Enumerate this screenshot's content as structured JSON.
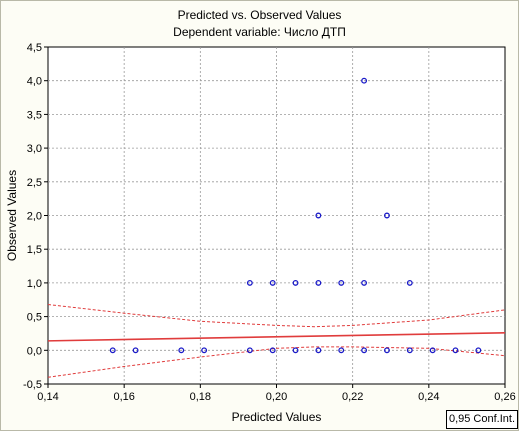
{
  "chart_data": {
    "type": "scatter",
    "title": "Predicted vs. Observed Values",
    "subtitle": "Dependent variable: Число ДТП",
    "xlabel": "Predicted Values",
    "ylabel": "Observed Values",
    "xlim": [
      0.14,
      0.26
    ],
    "ylim": [
      -0.5,
      4.5
    ],
    "x_ticks": [
      "0,14",
      "0,16",
      "0,18",
      "0,20",
      "0,22",
      "0,24",
      "0,26"
    ],
    "y_ticks": [
      "-0,5",
      "0,0",
      "0,5",
      "1,0",
      "1,5",
      "2,0",
      "2,5",
      "3,0",
      "3,5",
      "4,0",
      "4,5"
    ],
    "grid": true,
    "legend": "0,95 Conf.Int.",
    "points": [
      {
        "x": 0.157,
        "y": 0
      },
      {
        "x": 0.163,
        "y": 0
      },
      {
        "x": 0.175,
        "y": 0
      },
      {
        "x": 0.181,
        "y": 0
      },
      {
        "x": 0.193,
        "y": 0
      },
      {
        "x": 0.199,
        "y": 0
      },
      {
        "x": 0.205,
        "y": 0
      },
      {
        "x": 0.211,
        "y": 0
      },
      {
        "x": 0.217,
        "y": 0
      },
      {
        "x": 0.223,
        "y": 0
      },
      {
        "x": 0.229,
        "y": 0
      },
      {
        "x": 0.235,
        "y": 0
      },
      {
        "x": 0.241,
        "y": 0
      },
      {
        "x": 0.247,
        "y": 0
      },
      {
        "x": 0.253,
        "y": 0
      },
      {
        "x": 0.193,
        "y": 1
      },
      {
        "x": 0.199,
        "y": 1
      },
      {
        "x": 0.205,
        "y": 1
      },
      {
        "x": 0.211,
        "y": 1
      },
      {
        "x": 0.217,
        "y": 1
      },
      {
        "x": 0.223,
        "y": 1
      },
      {
        "x": 0.235,
        "y": 1
      },
      {
        "x": 0.211,
        "y": 2
      },
      {
        "x": 0.229,
        "y": 2
      },
      {
        "x": 0.223,
        "y": 4
      }
    ],
    "fit_line": {
      "x": [
        0.14,
        0.26
      ],
      "y": [
        0.14,
        0.26
      ]
    },
    "upper_ci": {
      "x": [
        0.14,
        0.16,
        0.18,
        0.2,
        0.21,
        0.22,
        0.24,
        0.26
      ],
      "y": [
        0.68,
        0.55,
        0.43,
        0.37,
        0.35,
        0.37,
        0.45,
        0.6
      ]
    },
    "lower_ci": {
      "x": [
        0.14,
        0.16,
        0.18,
        0.2,
        0.21,
        0.22,
        0.24,
        0.26
      ],
      "y": [
        -0.4,
        -0.24,
        -0.1,
        0.03,
        0.05,
        0.05,
        0.03,
        -0.08
      ]
    },
    "colors": {
      "points": "#1a1ac8",
      "fit": "#e03c3c",
      "ci": "#e03c3c",
      "grid": "#9a9a9a",
      "plot_bg": "#ffffff"
    }
  }
}
